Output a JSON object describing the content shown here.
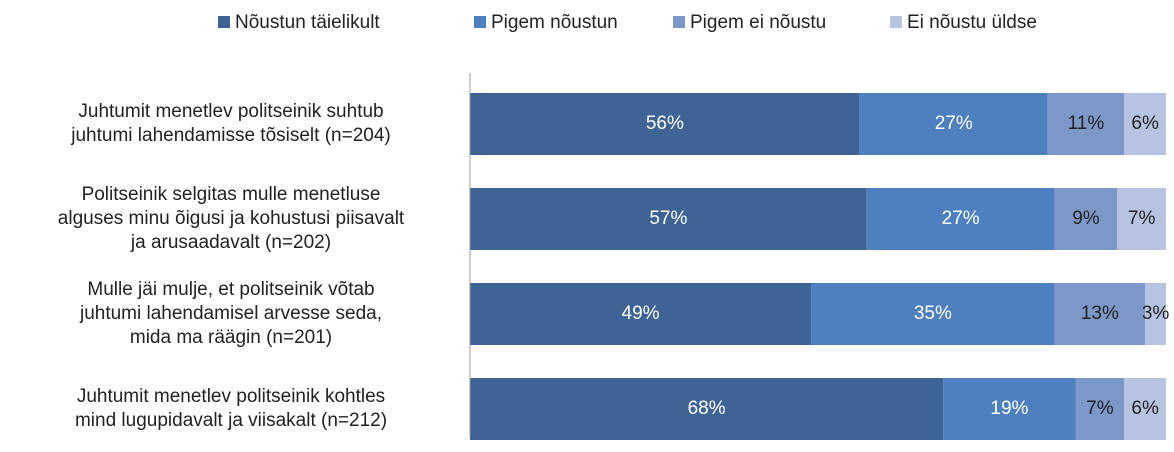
{
  "chart_data": {
    "type": "stacked_barh",
    "categories": [
      "Juhtumit menetlev politseinik suhtub\njuhtumi lahendamisse tõsiselt (n=204)",
      "Politseinik selgitas mulle menetluse\nalguses minu õigusi ja kohustusi piisavalt\nja arusaadavalt (n=202)",
      "Mulle jäi mulje, et politseinik võtab\njuhtumi lahendamisel arvesse seda,\nmida ma räägin (n=201)",
      "Juhtumit menetlev politseinik kohtles\nmind lugupidavalt ja viisakalt (n=212)"
    ],
    "series": [
      {
        "name": "Nõustun täielikult",
        "color": "#3e6496",
        "values": [
          56,
          57,
          49,
          68
        ],
        "value_labels": [
          "56%",
          "57%",
          "49%",
          "68%"
        ]
      },
      {
        "name": "Pigem nõustun",
        "color": "#4e7fbe",
        "values": [
          27,
          27,
          35,
          19
        ],
        "value_labels": [
          "27%",
          "27%",
          "35%",
          "19%"
        ]
      },
      {
        "name": "Pigem ei nõustu",
        "color": "#7c98c9",
        "values": [
          11,
          9,
          13,
          7
        ],
        "value_labels": [
          "11%",
          "9%",
          "13%",
          "7%"
        ]
      },
      {
        "name": "Ei nõustu üldse",
        "color": "#b6c4e1",
        "values": [
          6,
          7,
          3,
          6
        ],
        "value_labels": [
          "6%",
          "7%",
          "3%",
          "6%"
        ]
      }
    ],
    "xlim": [
      0,
      100
    ],
    "legend": "top"
  }
}
